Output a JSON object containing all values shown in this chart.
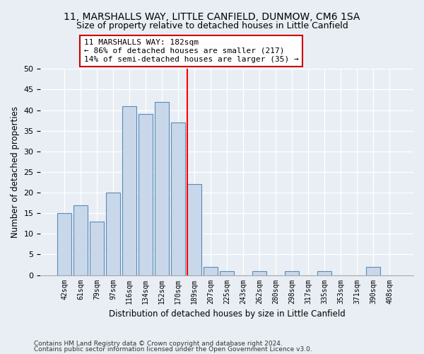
{
  "title": "11, MARSHALLS WAY, LITTLE CANFIELD, DUNMOW, CM6 1SA",
  "subtitle": "Size of property relative to detached houses in Little Canfield",
  "xlabel": "Distribution of detached houses by size in Little Canfield",
  "ylabel": "Number of detached properties",
  "bar_labels": [
    "42sqm",
    "61sqm",
    "79sqm",
    "97sqm",
    "116sqm",
    "134sqm",
    "152sqm",
    "170sqm",
    "189sqm",
    "207sqm",
    "225sqm",
    "243sqm",
    "262sqm",
    "280sqm",
    "298sqm",
    "317sqm",
    "335sqm",
    "353sqm",
    "371sqm",
    "390sqm",
    "408sqm"
  ],
  "bar_values": [
    15,
    17,
    13,
    20,
    41,
    39,
    42,
    37,
    22,
    2,
    1,
    0,
    1,
    0,
    1,
    0,
    1,
    0,
    0,
    2,
    0
  ],
  "bar_color": "#c8d8ea",
  "bar_edge_color": "#5a8ab8",
  "annotation_line1": "11 MARSHALLS WAY: 182sqm",
  "annotation_line2": "← 86% of detached houses are smaller (217)",
  "annotation_line3": "14% of semi-detached houses are larger (35) →",
  "ylim": [
    0,
    50
  ],
  "yticks": [
    0,
    5,
    10,
    15,
    20,
    25,
    30,
    35,
    40,
    45,
    50
  ],
  "footnote1": "Contains HM Land Registry data © Crown copyright and database right 2024.",
  "footnote2": "Contains public sector information licensed under the Open Government Licence v3.0.",
  "bg_color": "#e8eef4",
  "plot_bg_color": "#e8eef4",
  "red_line_x": 7.55,
  "title_fontsize": 10,
  "subtitle_fontsize": 9,
  "annotation_fontsize": 8
}
